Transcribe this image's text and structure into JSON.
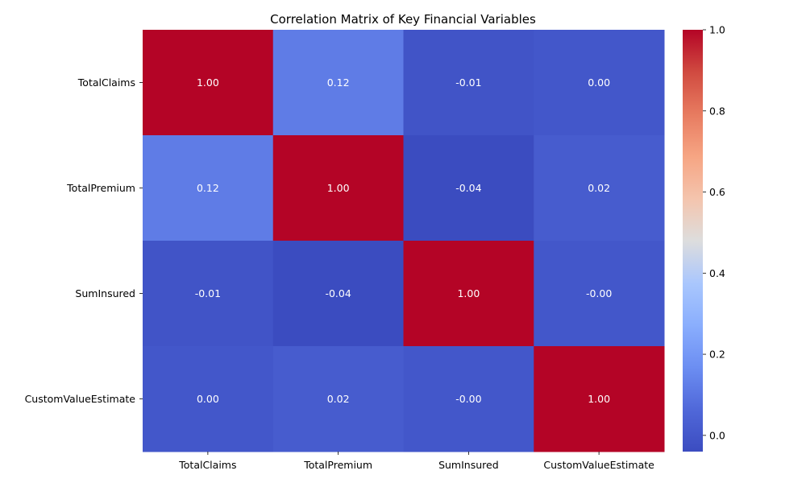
{
  "chart_data": {
    "type": "heatmap",
    "title": "Correlation Matrix of Key Financial Variables",
    "rows": [
      "TotalClaims",
      "TotalPremium",
      "SumInsured",
      "CustomValueEstimate"
    ],
    "columns": [
      "TotalClaims",
      "TotalPremium",
      "SumInsured",
      "CustomValueEstimate"
    ],
    "values": [
      [
        1.0,
        0.12,
        -0.01,
        0.0
      ],
      [
        0.12,
        1.0,
        -0.04,
        0.02
      ],
      [
        -0.01,
        -0.04,
        1.0,
        -0.0
      ],
      [
        0.0,
        0.02,
        -0.0,
        1.0
      ]
    ],
    "cell_labels": [
      [
        "1.00",
        "0.12",
        "-0.01",
        "0.00"
      ],
      [
        "0.12",
        "1.00",
        "-0.04",
        "0.02"
      ],
      [
        "-0.01",
        "-0.04",
        "1.00",
        "-0.00"
      ],
      [
        "0.00",
        "0.02",
        "-0.00",
        "1.00"
      ]
    ],
    "colormap": "coolwarm",
    "colorbar": {
      "range": [
        -0.04,
        1.0
      ],
      "ticks": [
        0.0,
        0.2,
        0.4,
        0.6,
        0.8,
        1.0
      ],
      "tick_labels": [
        "0.0",
        "0.2",
        "0.4",
        "0.6",
        "0.8",
        "1.0"
      ]
    },
    "annotation_colors": {
      "light": "#ffffff",
      "dark": "#000000"
    }
  }
}
